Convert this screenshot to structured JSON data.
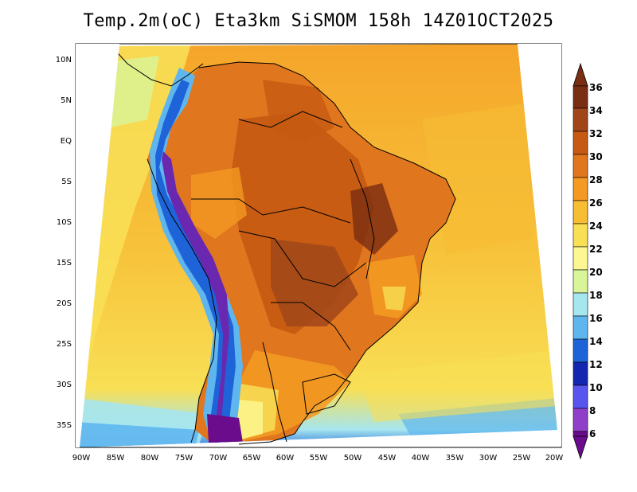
{
  "title": "Temp.2m(oC) Eta3km SiSMOM 158h 14Z01OCT2025",
  "lat_labels": [
    "10N",
    "5N",
    "EQ",
    "5S",
    "10S",
    "15S",
    "20S",
    "25S",
    "30S",
    "35S"
  ],
  "lon_labels": [
    "90W",
    "85W",
    "80W",
    "75W",
    "70W",
    "65W",
    "60W",
    "55W",
    "50W",
    "45W",
    "40W",
    "35W",
    "30W",
    "25W",
    "20W"
  ],
  "colorbar": {
    "labels": [
      "36",
      "34",
      "32",
      "30",
      "28",
      "26",
      "24",
      "22",
      "20",
      "18",
      "16",
      "14",
      "12",
      "10",
      "8",
      "6"
    ],
    "colors": [
      "#7a2e12",
      "#a0461a",
      "#c65a12",
      "#e0761e",
      "#f49a22",
      "#f7bd33",
      "#f8df55",
      "#fbf792",
      "#d8f59a",
      "#a6e6ee",
      "#5fb6ee",
      "#1e64d8",
      "#1226b0",
      "#5854ee",
      "#9040c8",
      "#6a0c8c"
    ]
  },
  "land_colors": {
    "ocean_warm": "#f7c23a",
    "ocean_cool": "#f8df55",
    "land_hot": "#e07a1e",
    "land_very_hot": "#b55218",
    "andes_cold": "#6a28b0",
    "andes_mid": "#3a7ee0"
  }
}
